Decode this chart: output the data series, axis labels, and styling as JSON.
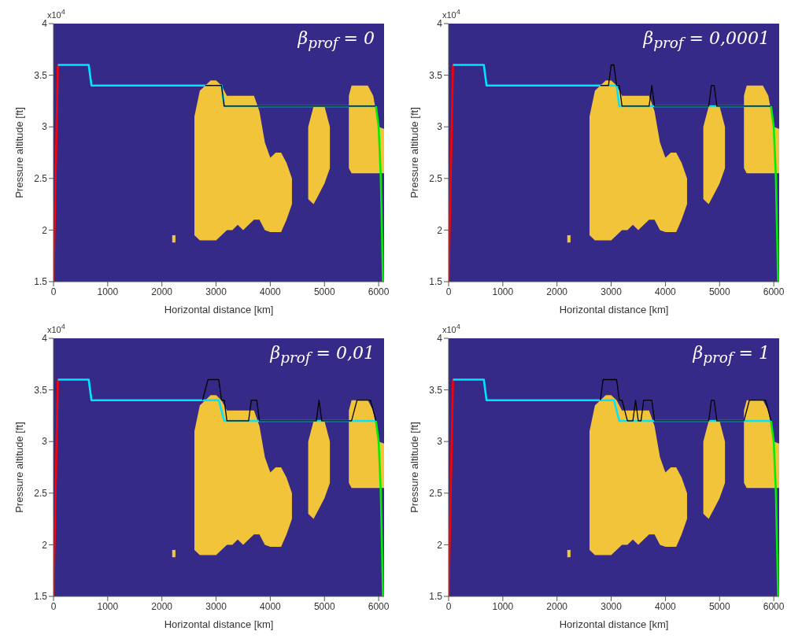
{
  "chart_data": [
    {
      "type": "line",
      "title": "β$_{prof}$ = 0",
      "xlabel": "Horizontal distance [km]",
      "ylabel": "Pressure altitude [ft]",
      "annotations": [
        "x10$^{4}$"
      ],
      "xlim": [
        0,
        6100
      ],
      "ylim": [
        1.5,
        4
      ],
      "xticks": [
        0,
        1000,
        2000,
        3000,
        4000,
        5000,
        6000
      ],
      "yticks": [
        1.5,
        2,
        2.5,
        3,
        3.5,
        4
      ],
      "grid": false,
      "legend": false,
      "marker": "none",
      "line_style": "solid",
      "series": [
        {
          "type": "area",
          "color": "#f2c43a",
          "values": [
            null,
            null,
            null,
            null,
            null,
            null,
            null,
            null,
            null,
            null,
            null,
            null,
            null,
            null,
            null,
            null,
            null,
            null,
            null,
            null,
            null,
            null,
            null,
            null,
            null,
            null,
            null,
            null,
            null,
            null,
            null,
            null,
            null,
            null,
            null,
            null,
            null
          ],
          "x": [
            2190,
            2250,
            2300,
            2600,
            2700,
            2800,
            2900,
            3000,
            3100,
            3200,
            3300,
            3400,
            3500,
            3600,
            3700,
            3800,
            3900,
            4000,
            4100,
            4200,
            4300,
            4400,
            4500,
            4700,
            4800,
            4900,
            5000,
            5100,
            5200,
            5450,
            5500,
            5600,
            5700,
            5800,
            5900,
            6000,
            6100
          ],
          "lower": [
            1.88,
            1.88,
            null,
            1.95,
            1.9,
            1.9,
            1.9,
            1.9,
            1.95,
            2,
            2,
            2.05,
            2,
            2.05,
            2.1,
            2.1,
            2,
            1.98,
            1.98,
            1.98,
            2.1,
            2.25,
            null,
            2.3,
            2.25,
            2.35,
            2.45,
            2.6,
            null,
            2.6,
            2.55,
            2.55,
            2.55,
            2.55,
            2.55,
            2.55,
            2.55
          ],
          "upper": [
            1.95,
            1.95,
            null,
            3.1,
            3.35,
            3.4,
            3.45,
            3.45,
            3.4,
            3.3,
            3.3,
            3.3,
            3.3,
            3.3,
            3.3,
            3.15,
            2.85,
            2.7,
            2.75,
            2.75,
            2.65,
            2.5,
            null,
            3,
            3.2,
            3.2,
            3.2,
            3,
            null,
            3.3,
            3.4,
            3.4,
            3.4,
            3.4,
            3.3,
            3,
            2.98
          ]
        },
        {
          "color": "#ff0000",
          "x": [
            0,
            80
          ],
          "values": [
            1.5,
            3.6
          ]
        },
        {
          "color": "#00e5ff",
          "x": [
            80,
            650,
            700,
            3100,
            3150,
            5950
          ],
          "values": [
            3.6,
            3.6,
            3.4,
            3.4,
            3.2,
            3.2
          ]
        },
        {
          "color": "#000000",
          "x": [
            2800,
            3100,
            3150,
            5950
          ],
          "values": [
            3.4,
            3.4,
            3.2,
            3.2
          ]
        },
        {
          "color": "#00ee00",
          "x": [
            5950,
            6000,
            6040,
            6080
          ],
          "values": [
            3.2,
            3,
            2.5,
            1.5
          ]
        }
      ]
    },
    {
      "type": "line",
      "title": "β$_{prof}$ = 0,0001",
      "xlabel": "Horizontal distance [km]",
      "ylabel": "Pressure altitude [ft]",
      "annotations": [
        "x10$^{4}$"
      ],
      "xlim": [
        0,
        6100
      ],
      "ylim": [
        1.5,
        4
      ],
      "xticks": [
        0,
        1000,
        2000,
        3000,
        4000,
        5000,
        6000
      ],
      "yticks": [
        1.5,
        2,
        2.5,
        3,
        3.5,
        4
      ],
      "grid": false,
      "legend": false,
      "marker": "none",
      "line_style": "solid",
      "series": [
        {
          "type": "area",
          "color": "#f2c43a",
          "values": [
            null,
            null,
            null,
            null,
            null,
            null,
            null,
            null,
            null,
            null,
            null,
            null,
            null,
            null,
            null,
            null,
            null,
            null,
            null,
            null,
            null,
            null,
            null,
            null,
            null,
            null,
            null,
            null,
            null,
            null,
            null,
            null,
            null,
            null,
            null,
            null,
            null
          ],
          "x": [
            2190,
            2250,
            2300,
            2600,
            2700,
            2800,
            2900,
            3000,
            3100,
            3200,
            3300,
            3400,
            3500,
            3600,
            3700,
            3800,
            3900,
            4000,
            4100,
            4200,
            4300,
            4400,
            4500,
            4700,
            4800,
            4900,
            5000,
            5100,
            5200,
            5450,
            5500,
            5600,
            5700,
            5800,
            5900,
            6000,
            6100
          ],
          "lower": [
            1.88,
            1.88,
            null,
            1.95,
            1.9,
            1.9,
            1.9,
            1.9,
            1.95,
            2,
            2,
            2.05,
            2,
            2.05,
            2.1,
            2.1,
            2,
            1.98,
            1.98,
            1.98,
            2.1,
            2.25,
            null,
            2.3,
            2.25,
            2.35,
            2.45,
            2.6,
            null,
            2.6,
            2.55,
            2.55,
            2.55,
            2.55,
            2.55,
            2.55,
            2.55
          ],
          "upper": [
            1.95,
            1.95,
            null,
            3.1,
            3.35,
            3.4,
            3.45,
            3.45,
            3.4,
            3.3,
            3.3,
            3.3,
            3.3,
            3.3,
            3.3,
            3.15,
            2.85,
            2.7,
            2.75,
            2.75,
            2.65,
            2.5,
            null,
            3,
            3.2,
            3.2,
            3.2,
            3,
            null,
            3.3,
            3.4,
            3.4,
            3.4,
            3.4,
            3.3,
            3,
            2.98
          ]
        },
        {
          "color": "#ff0000",
          "x": [
            0,
            80
          ],
          "values": [
            1.5,
            3.6
          ]
        },
        {
          "color": "#00e5ff",
          "x": [
            80,
            650,
            700,
            3100,
            3150,
            5950
          ],
          "values": [
            3.6,
            3.6,
            3.4,
            3.4,
            3.2,
            3.2
          ]
        },
        {
          "color": "#000000",
          "x": [
            2800,
            2950,
            3000,
            3050,
            3100,
            3150,
            3200,
            3700,
            3750,
            3800,
            4800,
            4850,
            4900,
            4950,
            5950
          ],
          "values": [
            3.4,
            3.4,
            3.6,
            3.6,
            3.4,
            3.4,
            3.2,
            3.2,
            3.4,
            3.2,
            3.2,
            3.4,
            3.4,
            3.2,
            3.2
          ]
        },
        {
          "color": "#00ee00",
          "x": [
            5950,
            6000,
            6040,
            6080
          ],
          "values": [
            3.2,
            3,
            2.5,
            1.5
          ]
        }
      ]
    },
    {
      "type": "line",
      "title": "β$_{prof}$ = 0,01",
      "xlabel": "Horizontal distance [km]",
      "ylabel": "Pressure altitude [ft]",
      "annotations": [
        "x10$^{4}$"
      ],
      "xlim": [
        0,
        6100
      ],
      "ylim": [
        1.5,
        4
      ],
      "xticks": [
        0,
        1000,
        2000,
        3000,
        4000,
        5000,
        6000
      ],
      "yticks": [
        1.5,
        2,
        2.5,
        3,
        3.5,
        4
      ],
      "grid": false,
      "legend": false,
      "marker": "none",
      "line_style": "solid",
      "series": [
        {
          "type": "area",
          "color": "#f2c43a",
          "values": [
            null,
            null,
            null,
            null,
            null,
            null,
            null,
            null,
            null,
            null,
            null,
            null,
            null,
            null,
            null,
            null,
            null,
            null,
            null,
            null,
            null,
            null,
            null,
            null,
            null,
            null,
            null,
            null,
            null,
            null,
            null,
            null,
            null,
            null,
            null,
            null,
            null
          ],
          "x": [
            2190,
            2250,
            2300,
            2600,
            2700,
            2800,
            2900,
            3000,
            3100,
            3200,
            3300,
            3400,
            3500,
            3600,
            3700,
            3800,
            3900,
            4000,
            4100,
            4200,
            4300,
            4400,
            4500,
            4700,
            4800,
            4900,
            5000,
            5100,
            5200,
            5450,
            5500,
            5600,
            5700,
            5800,
            5900,
            6000,
            6100
          ],
          "lower": [
            1.88,
            1.88,
            null,
            1.95,
            1.9,
            1.9,
            1.9,
            1.9,
            1.95,
            2,
            2,
            2.05,
            2,
            2.05,
            2.1,
            2.1,
            2,
            1.98,
            1.98,
            1.98,
            2.1,
            2.25,
            null,
            2.3,
            2.25,
            2.35,
            2.45,
            2.6,
            null,
            2.6,
            2.55,
            2.55,
            2.55,
            2.55,
            2.55,
            2.55,
            2.55
          ],
          "upper": [
            1.95,
            1.95,
            null,
            3.1,
            3.35,
            3.4,
            3.45,
            3.45,
            3.4,
            3.3,
            3.3,
            3.3,
            3.3,
            3.3,
            3.3,
            3.15,
            2.85,
            2.7,
            2.75,
            2.75,
            2.65,
            2.5,
            null,
            3,
            3.2,
            3.2,
            3.2,
            3,
            null,
            3.3,
            3.4,
            3.4,
            3.4,
            3.4,
            3.3,
            3,
            2.98
          ]
        },
        {
          "color": "#ff0000",
          "x": [
            0,
            80
          ],
          "values": [
            1.5,
            3.6
          ]
        },
        {
          "color": "#00e5ff",
          "x": [
            80,
            650,
            700,
            3050,
            3150,
            5950
          ],
          "values": [
            3.6,
            3.6,
            3.4,
            3.4,
            3.2,
            3.2
          ]
        },
        {
          "color": "#000000",
          "x": [
            2750,
            2850,
            3050,
            3100,
            3150,
            3200,
            3600,
            3650,
            3750,
            3800,
            4850,
            4900,
            4950,
            5500,
            5600,
            5850,
            5950
          ],
          "values": [
            3.4,
            3.6,
            3.6,
            3.4,
            3.4,
            3.2,
            3.2,
            3.4,
            3.4,
            3.2,
            3.2,
            3.4,
            3.2,
            3.2,
            3.4,
            3.4,
            3.2
          ]
        },
        {
          "color": "#00ee00",
          "x": [
            5950,
            6000,
            6040,
            6080
          ],
          "values": [
            3.2,
            3,
            2.5,
            1.5
          ]
        }
      ]
    },
    {
      "type": "line",
      "title": "β$_{prof}$ = 1",
      "xlabel": "Horizontal distance [km]",
      "ylabel": "Pressure altitude [ft]",
      "annotations": [
        "x10$^{4}$"
      ],
      "xlim": [
        0,
        6100
      ],
      "ylim": [
        1.5,
        4
      ],
      "xticks": [
        0,
        1000,
        2000,
        3000,
        4000,
        5000,
        6000
      ],
      "yticks": [
        1.5,
        2,
        2.5,
        3,
        3.5,
        4
      ],
      "grid": false,
      "legend": false,
      "marker": "none",
      "line_style": "solid",
      "series": [
        {
          "type": "area",
          "color": "#f2c43a",
          "values": [
            null,
            null,
            null,
            null,
            null,
            null,
            null,
            null,
            null,
            null,
            null,
            null,
            null,
            null,
            null,
            null,
            null,
            null,
            null,
            null,
            null,
            null,
            null,
            null,
            null,
            null,
            null,
            null,
            null,
            null,
            null,
            null,
            null,
            null,
            null,
            null,
            null
          ],
          "x": [
            2190,
            2250,
            2300,
            2600,
            2700,
            2800,
            2900,
            3000,
            3100,
            3200,
            3300,
            3400,
            3500,
            3600,
            3700,
            3800,
            3900,
            4000,
            4100,
            4200,
            4300,
            4400,
            4500,
            4700,
            4800,
            4900,
            5000,
            5100,
            5200,
            5450,
            5500,
            5600,
            5700,
            5800,
            5900,
            6000,
            6100
          ],
          "lower": [
            1.88,
            1.88,
            null,
            1.95,
            1.9,
            1.9,
            1.9,
            1.9,
            1.95,
            2,
            2,
            2.05,
            2,
            2.05,
            2.1,
            2.1,
            2,
            1.98,
            1.98,
            1.98,
            2.1,
            2.25,
            null,
            2.3,
            2.25,
            2.35,
            2.45,
            2.6,
            null,
            2.6,
            2.55,
            2.55,
            2.55,
            2.55,
            2.55,
            2.55,
            2.55
          ],
          "upper": [
            1.95,
            1.95,
            null,
            3.1,
            3.35,
            3.4,
            3.45,
            3.45,
            3.4,
            3.3,
            3.3,
            3.3,
            3.3,
            3.3,
            3.3,
            3.15,
            2.85,
            2.7,
            2.75,
            2.75,
            2.65,
            2.5,
            null,
            3,
            3.2,
            3.2,
            3.2,
            3,
            null,
            3.3,
            3.4,
            3.4,
            3.4,
            3.4,
            3.3,
            3,
            2.98
          ]
        },
        {
          "color": "#ff0000",
          "x": [
            0,
            80
          ],
          "values": [
            1.5,
            3.6
          ]
        },
        {
          "color": "#00e5ff",
          "x": [
            80,
            650,
            700,
            3050,
            3150,
            5950
          ],
          "values": [
            3.6,
            3.6,
            3.4,
            3.4,
            3.2,
            3.2
          ]
        },
        {
          "color": "#000000",
          "x": [
            2800,
            2850,
            3100,
            3150,
            3200,
            3300,
            3400,
            3450,
            3500,
            3550,
            3600,
            3750,
            3800,
            4800,
            4850,
            4900,
            4950,
            5450,
            5550,
            5850,
            5950
          ],
          "values": [
            3.4,
            3.6,
            3.6,
            3.4,
            3.4,
            3.2,
            3.2,
            3.4,
            3.2,
            3.2,
            3.4,
            3.4,
            3.2,
            3.2,
            3.4,
            3.4,
            3.2,
            3.2,
            3.4,
            3.4,
            3.2
          ]
        },
        {
          "color": "#00ee00",
          "x": [
            5950,
            6000,
            6040,
            6080
          ],
          "values": [
            3.2,
            3,
            2.5,
            1.5
          ]
        }
      ]
    }
  ]
}
